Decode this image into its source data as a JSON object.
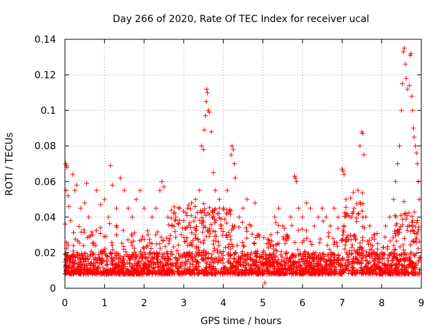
{
  "chart_data": {
    "type": "scatter",
    "title": "Day 266 of 2020, Rate Of TEC Index for receiver ucal",
    "xlabel": "GPS time / hours",
    "ylabel": "ROTI / TECUs",
    "xlim": [
      0,
      9
    ],
    "ylim": [
      0,
      0.14
    ],
    "x_ticks": [
      "0",
      "1",
      "2",
      "3",
      "4",
      "5",
      "6",
      "7",
      "8",
      "9"
    ],
    "y_ticks": [
      "0",
      "0.02",
      "0.04",
      "0.06",
      "0.08",
      "0.1",
      "0.12",
      "0.14"
    ],
    "grid": true,
    "marker": "plus",
    "color": "#ff0000",
    "series": [
      {
        "name": "ROTI",
        "points": [
          [
            0.02,
            0.07
          ],
          [
            0.04,
            0.069
          ],
          [
            0.05,
            0.068
          ],
          [
            0.03,
            0.055
          ],
          [
            0.08,
            0.052
          ],
          [
            0.1,
            0.046
          ],
          [
            0.15,
            0.038
          ],
          [
            0.2,
            0.064
          ],
          [
            0.25,
            0.055
          ],
          [
            0.3,
            0.058
          ],
          [
            0.4,
            0.045
          ],
          [
            0.5,
            0.048
          ],
          [
            0.55,
            0.059
          ],
          [
            0.6,
            0.04
          ],
          [
            0.7,
            0.03
          ],
          [
            0.8,
            0.055
          ],
          [
            0.9,
            0.047
          ],
          [
            1.0,
            0.05
          ],
          [
            1.1,
            0.04
          ],
          [
            1.15,
            0.069
          ],
          [
            1.2,
            0.058
          ],
          [
            1.3,
            0.045
          ],
          [
            1.4,
            0.062
          ],
          [
            1.5,
            0.055
          ],
          [
            1.6,
            0.045
          ],
          [
            1.7,
            0.04
          ],
          [
            1.8,
            0.05
          ],
          [
            1.9,
            0.055
          ],
          [
            2.0,
            0.045
          ],
          [
            2.1,
            0.03
          ],
          [
            2.2,
            0.04
          ],
          [
            2.3,
            0.045
          ],
          [
            2.4,
            0.055
          ],
          [
            2.45,
            0.06
          ],
          [
            2.5,
            0.057
          ],
          [
            2.6,
            0.04
          ],
          [
            2.7,
            0.035
          ],
          [
            2.8,
            0.04
          ],
          [
            2.9,
            0.045
          ],
          [
            3.0,
            0.038
          ],
          [
            3.1,
            0.045
          ],
          [
            3.2,
            0.048
          ],
          [
            3.3,
            0.05
          ],
          [
            3.4,
            0.055
          ],
          [
            3.45,
            0.08
          ],
          [
            3.5,
            0.078
          ],
          [
            3.52,
            0.089
          ],
          [
            3.55,
            0.097
          ],
          [
            3.57,
            0.105
          ],
          [
            3.58,
            0.112
          ],
          [
            3.6,
            0.11
          ],
          [
            3.62,
            0.1
          ],
          [
            3.65,
            0.099
          ],
          [
            3.7,
            0.088
          ],
          [
            3.75,
            0.065
          ],
          [
            3.8,
            0.055
          ],
          [
            3.9,
            0.05
          ],
          [
            4.0,
            0.045
          ],
          [
            4.1,
            0.055
          ],
          [
            4.2,
            0.075
          ],
          [
            4.22,
            0.08
          ],
          [
            4.25,
            0.078
          ],
          [
            4.28,
            0.07
          ],
          [
            4.3,
            0.062
          ],
          [
            4.4,
            0.04
          ],
          [
            4.5,
            0.045
          ],
          [
            4.6,
            0.05
          ],
          [
            4.7,
            0.035
          ],
          [
            4.8,
            0.048
          ],
          [
            4.9,
            0.03
          ],
          [
            5.0,
            0.02
          ],
          [
            5.05,
            0.003
          ],
          [
            5.1,
            0.025
          ],
          [
            5.2,
            0.03
          ],
          [
            5.3,
            0.04
          ],
          [
            5.4,
            0.045
          ],
          [
            5.5,
            0.035
          ],
          [
            5.6,
            0.03
          ],
          [
            5.7,
            0.04
          ],
          [
            5.8,
            0.063
          ],
          [
            5.82,
            0.062
          ],
          [
            5.85,
            0.06
          ],
          [
            5.9,
            0.045
          ],
          [
            6.0,
            0.04
          ],
          [
            6.1,
            0.048
          ],
          [
            6.2,
            0.045
          ],
          [
            6.3,
            0.035
          ],
          [
            6.4,
            0.04
          ],
          [
            6.5,
            0.045
          ],
          [
            6.6,
            0.04
          ],
          [
            6.7,
            0.035
          ],
          [
            6.8,
            0.045
          ],
          [
            6.9,
            0.04
          ],
          [
            7.0,
            0.067
          ],
          [
            7.02,
            0.066
          ],
          [
            7.05,
            0.064
          ],
          [
            7.1,
            0.05
          ],
          [
            7.2,
            0.04
          ],
          [
            7.3,
            0.045
          ],
          [
            7.4,
            0.055
          ],
          [
            7.45,
            0.08
          ],
          [
            7.5,
            0.088
          ],
          [
            7.52,
            0.087
          ],
          [
            7.55,
            0.075
          ],
          [
            7.6,
            0.04
          ],
          [
            7.7,
            0.035
          ],
          [
            7.8,
            0.03
          ],
          [
            7.9,
            0.025
          ],
          [
            8.0,
            0.02
          ],
          [
            8.1,
            0.035
          ],
          [
            8.2,
            0.04
          ],
          [
            8.3,
            0.05
          ],
          [
            8.35,
            0.06
          ],
          [
            8.4,
            0.07
          ],
          [
            8.45,
            0.08
          ],
          [
            8.5,
            0.1
          ],
          [
            8.52,
            0.115
          ],
          [
            8.55,
            0.133
          ],
          [
            8.57,
            0.135
          ],
          [
            8.6,
            0.126
          ],
          [
            8.62,
            0.118
          ],
          [
            8.65,
            0.112
          ],
          [
            8.7,
            0.114
          ],
          [
            8.72,
            0.131
          ],
          [
            8.74,
            0.132
          ],
          [
            8.76,
            0.108
          ],
          [
            8.78,
            0.1
          ],
          [
            8.8,
            0.09
          ],
          [
            8.82,
            0.085
          ],
          [
            8.85,
            0.08
          ],
          [
            8.88,
            0.076
          ],
          [
            8.9,
            0.07
          ],
          [
            8.92,
            0.06
          ],
          [
            8.95,
            0.05
          ]
        ]
      }
    ]
  }
}
